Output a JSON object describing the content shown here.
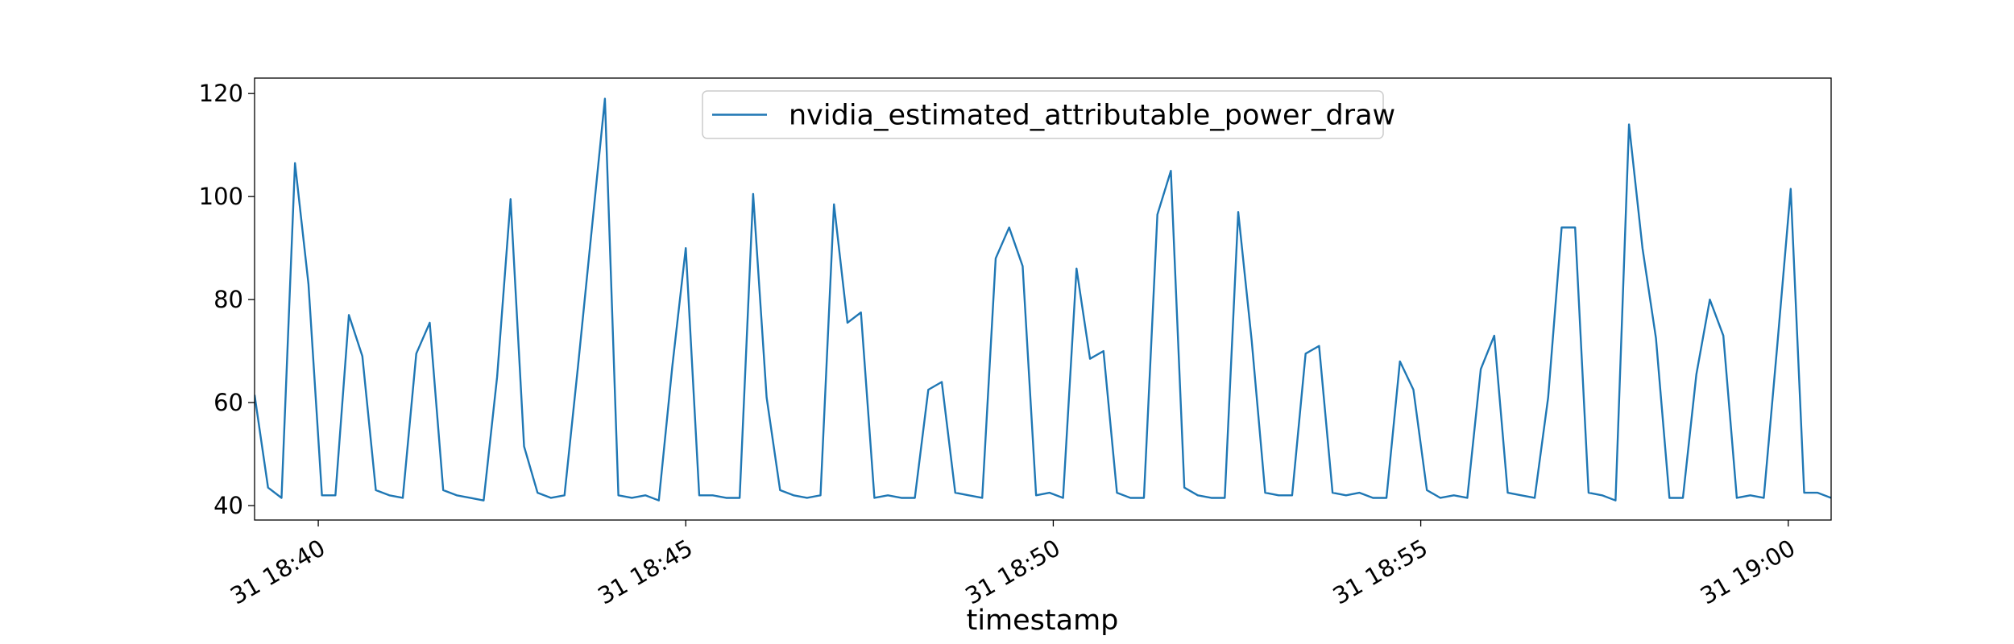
{
  "chart_data": {
    "type": "line",
    "xlabel": "timestamp",
    "x": [
      "31 18:39:08",
      "31 18:39:19",
      "31 18:39:30",
      "31 18:39:41",
      "31 18:39:52",
      "31 18:40:03",
      "31 18:40:14",
      "31 18:40:25",
      "31 18:40:36",
      "31 18:40:47",
      "31 18:40:58",
      "31 18:41:09",
      "31 18:41:20",
      "31 18:41:31",
      "31 18:41:42",
      "31 18:41:53",
      "31 18:42:04",
      "31 18:42:15",
      "31 18:42:26",
      "31 18:42:37",
      "31 18:42:48",
      "31 18:42:59",
      "31 18:43:10",
      "31 18:43:21",
      "31 18:43:32",
      "31 18:43:43",
      "31 18:43:54",
      "31 18:44:05",
      "31 18:44:16",
      "31 18:44:27",
      "31 18:44:38",
      "31 18:44:49",
      "31 18:45:00",
      "31 18:45:11",
      "31 18:45:22",
      "31 18:45:33",
      "31 18:45:44",
      "31 18:45:55",
      "31 18:46:06",
      "31 18:46:17",
      "31 18:46:28",
      "31 18:46:39",
      "31 18:46:50",
      "31 18:47:01",
      "31 18:47:12",
      "31 18:47:23",
      "31 18:47:34",
      "31 18:47:45",
      "31 18:47:56",
      "31 18:48:07",
      "31 18:48:18",
      "31 18:48:29",
      "31 18:48:40",
      "31 18:48:51",
      "31 18:49:02",
      "31 18:49:13",
      "31 18:49:24",
      "31 18:49:35",
      "31 18:49:46",
      "31 18:49:57",
      "31 18:50:08",
      "31 18:50:19",
      "31 18:50:30",
      "31 18:50:41",
      "31 18:50:52",
      "31 18:51:03",
      "31 18:51:14",
      "31 18:51:25",
      "31 18:51:36",
      "31 18:51:47",
      "31 18:51:58",
      "31 18:52:09",
      "31 18:52:20",
      "31 18:52:31",
      "31 18:52:42",
      "31 18:52:53",
      "31 18:53:04",
      "31 18:53:15",
      "31 18:53:26",
      "31 18:53:37",
      "31 18:53:48",
      "31 18:53:59",
      "31 18:54:10",
      "31 18:54:21",
      "31 18:54:32",
      "31 18:54:43",
      "31 18:54:54",
      "31 18:55:05",
      "31 18:55:16",
      "31 18:55:27",
      "31 18:55:38",
      "31 18:55:49",
      "31 18:56:00",
      "31 18:56:11",
      "31 18:56:22",
      "31 18:56:33",
      "31 18:56:44",
      "31 18:56:55",
      "31 18:57:06",
      "31 18:57:17",
      "31 18:57:28",
      "31 18:57:39",
      "31 18:57:50",
      "31 18:58:01",
      "31 18:58:12",
      "31 18:58:23",
      "31 18:58:34",
      "31 18:58:45",
      "31 18:58:56",
      "31 18:59:07",
      "31 18:59:18",
      "31 18:59:29",
      "31 18:59:40",
      "31 18:59:51",
      "31 19:00:02",
      "31 19:00:13",
      "31 19:00:24",
      "31 19:00:35"
    ],
    "series": [
      {
        "name": "nvidia_estimated_attributable_power_draw",
        "color": "#1f77b4",
        "values": [
          61.5,
          43.5,
          41.5,
          106.5,
          83,
          42,
          42,
          77,
          69,
          43,
          42,
          41.5,
          69.5,
          75.5,
          43,
          42,
          41.5,
          41,
          65,
          99.5,
          51.5,
          42.5,
          41.5,
          42,
          67,
          93,
          119,
          42,
          41.5,
          42,
          41,
          67,
          90,
          42,
          42,
          41.5,
          41.5,
          100.5,
          61,
          43,
          42,
          41.5,
          42,
          98.5,
          75.5,
          77.5,
          41.5,
          42,
          41.5,
          41.5,
          62.5,
          64,
          42.5,
          42,
          41.5,
          88,
          94,
          86.5,
          42,
          42.5,
          41.5,
          86,
          68.5,
          70,
          42.5,
          41.5,
          41.5,
          96.5,
          105,
          43.5,
          42,
          41.5,
          41.5,
          97,
          72,
          42.5,
          42,
          42,
          69.5,
          71,
          42.5,
          42,
          42.5,
          41.5,
          41.5,
          68,
          62.5,
          43,
          41.5,
          42,
          41.5,
          66.5,
          73,
          42.5,
          42,
          41.5,
          61,
          94,
          94,
          42.5,
          42,
          41,
          114,
          90,
          72.5,
          41.5,
          41.5,
          65.5,
          80,
          73,
          41.5,
          42,
          41.5,
          71,
          101.5,
          42.5,
          42.5,
          41.5
        ]
      }
    ],
    "xlim": [
      "31 18:39:08",
      "31 19:00:35"
    ],
    "xticks": [
      "31 18:40",
      "31 18:45",
      "31 18:50",
      "31 18:55",
      "31 19:00"
    ],
    "ylim": [
      37.2,
      123
    ],
    "yticks": [
      40,
      60,
      80,
      100,
      120
    ],
    "grid": false,
    "legend": "upper center"
  }
}
